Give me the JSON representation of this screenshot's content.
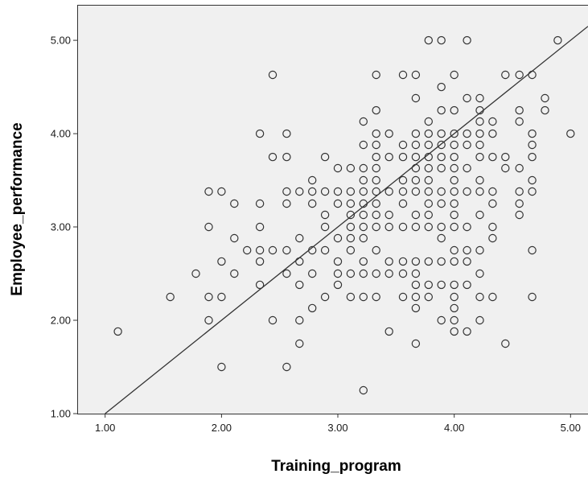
{
  "chart_data": {
    "type": "scatter",
    "title": "",
    "xlabel": "Training_program",
    "ylabel": "Employee_performance",
    "xlim": [
      0.76,
      5.15
    ],
    "ylim": [
      1.0,
      5.38
    ],
    "x_ticks": [
      "1.00",
      "2.00",
      "3.00",
      "4.00",
      "5.00"
    ],
    "y_ticks": [
      "1.00",
      "2.00",
      "3.00",
      "4.00",
      "5.00"
    ],
    "grid": false,
    "legend": "none",
    "plot_background": "#f0f0f0",
    "marker": "hollow-circle",
    "marker_color": "#333333",
    "fit_line": {
      "intercept": 0.0,
      "slope": 1.0,
      "color": "#333333"
    },
    "points": [
      [
        1.11,
        1.88
      ],
      [
        1.56,
        2.25
      ],
      [
        1.78,
        2.5
      ],
      [
        1.89,
        2.0
      ],
      [
        1.89,
        2.25
      ],
      [
        1.89,
        3.0
      ],
      [
        1.89,
        3.38
      ],
      [
        2.0,
        1.5
      ],
      [
        2.0,
        2.25
      ],
      [
        2.0,
        2.63
      ],
      [
        2.0,
        3.38
      ],
      [
        2.11,
        2.5
      ],
      [
        2.11,
        2.88
      ],
      [
        2.11,
        3.25
      ],
      [
        2.22,
        2.75
      ],
      [
        2.33,
        2.38
      ],
      [
        2.33,
        2.63
      ],
      [
        2.33,
        2.75
      ],
      [
        2.33,
        3.0
      ],
      [
        2.33,
        3.25
      ],
      [
        2.33,
        4.0
      ],
      [
        2.44,
        2.0
      ],
      [
        2.44,
        2.75
      ],
      [
        2.44,
        3.75
      ],
      [
        2.44,
        4.63
      ],
      [
        2.56,
        1.5
      ],
      [
        2.56,
        2.5
      ],
      [
        2.56,
        2.75
      ],
      [
        2.56,
        3.25
      ],
      [
        2.56,
        3.38
      ],
      [
        2.56,
        3.75
      ],
      [
        2.56,
        4.0
      ],
      [
        2.67,
        1.75
      ],
      [
        2.67,
        2.0
      ],
      [
        2.67,
        2.38
      ],
      [
        2.67,
        2.63
      ],
      [
        2.67,
        2.88
      ],
      [
        2.67,
        3.38
      ],
      [
        2.78,
        2.13
      ],
      [
        2.78,
        2.5
      ],
      [
        2.78,
        2.75
      ],
      [
        2.78,
        3.25
      ],
      [
        2.78,
        3.38
      ],
      [
        2.78,
        3.5
      ],
      [
        2.89,
        2.25
      ],
      [
        2.89,
        2.75
      ],
      [
        2.89,
        3.0
      ],
      [
        2.89,
        3.13
      ],
      [
        2.89,
        3.38
      ],
      [
        2.89,
        3.75
      ],
      [
        3.0,
        2.38
      ],
      [
        3.0,
        2.5
      ],
      [
        3.0,
        2.63
      ],
      [
        3.0,
        2.88
      ],
      [
        3.0,
        3.25
      ],
      [
        3.0,
        3.38
      ],
      [
        3.0,
        3.63
      ],
      [
        3.11,
        2.25
      ],
      [
        3.11,
        2.5
      ],
      [
        3.11,
        2.75
      ],
      [
        3.11,
        2.88
      ],
      [
        3.11,
        3.0
      ],
      [
        3.11,
        3.13
      ],
      [
        3.11,
        3.25
      ],
      [
        3.11,
        3.38
      ],
      [
        3.11,
        3.63
      ],
      [
        3.22,
        1.25
      ],
      [
        3.22,
        2.25
      ],
      [
        3.22,
        2.5
      ],
      [
        3.22,
        2.63
      ],
      [
        3.22,
        2.88
      ],
      [
        3.22,
        3.0
      ],
      [
        3.22,
        3.13
      ],
      [
        3.22,
        3.25
      ],
      [
        3.22,
        3.38
      ],
      [
        3.22,
        3.5
      ],
      [
        3.22,
        3.63
      ],
      [
        3.22,
        3.88
      ],
      [
        3.22,
        4.13
      ],
      [
        3.33,
        2.25
      ],
      [
        3.33,
        2.5
      ],
      [
        3.33,
        2.75
      ],
      [
        3.33,
        3.0
      ],
      [
        3.33,
        3.13
      ],
      [
        3.33,
        3.25
      ],
      [
        3.33,
        3.38
      ],
      [
        3.33,
        3.5
      ],
      [
        3.33,
        3.63
      ],
      [
        3.33,
        3.75
      ],
      [
        3.33,
        3.88
      ],
      [
        3.33,
        4.0
      ],
      [
        3.33,
        4.25
      ],
      [
        3.33,
        4.63
      ],
      [
        3.44,
        1.88
      ],
      [
        3.44,
        2.5
      ],
      [
        3.44,
        2.63
      ],
      [
        3.44,
        3.0
      ],
      [
        3.44,
        3.13
      ],
      [
        3.44,
        3.38
      ],
      [
        3.44,
        3.75
      ],
      [
        3.44,
        4.0
      ],
      [
        3.56,
        2.25
      ],
      [
        3.56,
        2.5
      ],
      [
        3.56,
        2.63
      ],
      [
        3.56,
        3.0
      ],
      [
        3.56,
        3.25
      ],
      [
        3.56,
        3.38
      ],
      [
        3.56,
        3.5
      ],
      [
        3.56,
        3.75
      ],
      [
        3.56,
        3.88
      ],
      [
        3.56,
        4.63
      ],
      [
        3.67,
        1.75
      ],
      [
        3.67,
        2.13
      ],
      [
        3.67,
        2.25
      ],
      [
        3.67,
        2.38
      ],
      [
        3.67,
        2.5
      ],
      [
        3.67,
        2.63
      ],
      [
        3.67,
        3.0
      ],
      [
        3.67,
        3.13
      ],
      [
        3.67,
        3.38
      ],
      [
        3.67,
        3.5
      ],
      [
        3.67,
        3.63
      ],
      [
        3.67,
        3.75
      ],
      [
        3.67,
        3.88
      ],
      [
        3.67,
        4.0
      ],
      [
        3.67,
        4.38
      ],
      [
        3.67,
        4.63
      ],
      [
        3.78,
        2.25
      ],
      [
        3.78,
        2.38
      ],
      [
        3.78,
        2.63
      ],
      [
        3.78,
        3.0
      ],
      [
        3.78,
        3.13
      ],
      [
        3.78,
        3.25
      ],
      [
        3.78,
        3.38
      ],
      [
        3.78,
        3.5
      ],
      [
        3.78,
        3.63
      ],
      [
        3.78,
        3.75
      ],
      [
        3.78,
        3.88
      ],
      [
        3.78,
        4.0
      ],
      [
        3.78,
        4.13
      ],
      [
        3.78,
        5.0
      ],
      [
        3.89,
        2.0
      ],
      [
        3.89,
        2.38
      ],
      [
        3.89,
        2.63
      ],
      [
        3.89,
        2.88
      ],
      [
        3.89,
        3.0
      ],
      [
        3.89,
        3.25
      ],
      [
        3.89,
        3.38
      ],
      [
        3.89,
        3.63
      ],
      [
        3.89,
        3.75
      ],
      [
        3.89,
        3.88
      ],
      [
        3.89,
        4.0
      ],
      [
        3.89,
        4.25
      ],
      [
        3.89,
        4.5
      ],
      [
        3.89,
        5.0
      ],
      [
        4.0,
        1.88
      ],
      [
        4.0,
        2.0
      ],
      [
        4.0,
        2.13
      ],
      [
        4.0,
        2.25
      ],
      [
        4.0,
        2.38
      ],
      [
        4.0,
        2.63
      ],
      [
        4.0,
        2.75
      ],
      [
        4.0,
        3.0
      ],
      [
        4.0,
        3.13
      ],
      [
        4.0,
        3.25
      ],
      [
        4.0,
        3.38
      ],
      [
        4.0,
        3.5
      ],
      [
        4.0,
        3.63
      ],
      [
        4.0,
        3.75
      ],
      [
        4.0,
        3.88
      ],
      [
        4.0,
        4.0
      ],
      [
        4.0,
        4.25
      ],
      [
        4.0,
        4.63
      ],
      [
        4.11,
        1.88
      ],
      [
        4.11,
        2.38
      ],
      [
        4.11,
        2.63
      ],
      [
        4.11,
        2.75
      ],
      [
        4.11,
        3.0
      ],
      [
        4.11,
        3.38
      ],
      [
        4.11,
        3.63
      ],
      [
        4.11,
        3.88
      ],
      [
        4.11,
        4.0
      ],
      [
        4.11,
        4.38
      ],
      [
        4.11,
        5.0
      ],
      [
        4.22,
        2.0
      ],
      [
        4.22,
        2.25
      ],
      [
        4.22,
        2.5
      ],
      [
        4.22,
        2.75
      ],
      [
        4.22,
        3.13
      ],
      [
        4.22,
        3.38
      ],
      [
        4.22,
        3.5
      ],
      [
        4.22,
        3.75
      ],
      [
        4.22,
        3.88
      ],
      [
        4.22,
        4.0
      ],
      [
        4.22,
        4.13
      ],
      [
        4.22,
        4.25
      ],
      [
        4.22,
        4.38
      ],
      [
        4.33,
        2.25
      ],
      [
        4.33,
        2.88
      ],
      [
        4.33,
        3.0
      ],
      [
        4.33,
        3.25
      ],
      [
        4.33,
        3.38
      ],
      [
        4.33,
        3.75
      ],
      [
        4.33,
        4.0
      ],
      [
        4.33,
        4.13
      ],
      [
        4.44,
        1.75
      ],
      [
        4.44,
        3.63
      ],
      [
        4.44,
        3.75
      ],
      [
        4.44,
        4.63
      ],
      [
        4.56,
        3.13
      ],
      [
        4.56,
        3.25
      ],
      [
        4.56,
        3.38
      ],
      [
        4.56,
        3.63
      ],
      [
        4.56,
        4.13
      ],
      [
        4.56,
        4.25
      ],
      [
        4.56,
        4.63
      ],
      [
        4.67,
        2.25
      ],
      [
        4.67,
        2.75
      ],
      [
        4.67,
        3.38
      ],
      [
        4.67,
        3.5
      ],
      [
        4.67,
        3.75
      ],
      [
        4.67,
        3.88
      ],
      [
        4.67,
        4.0
      ],
      [
        4.67,
        4.63
      ],
      [
        4.78,
        4.25
      ],
      [
        4.78,
        4.38
      ],
      [
        4.89,
        5.0
      ],
      [
        5.0,
        4.0
      ]
    ]
  }
}
